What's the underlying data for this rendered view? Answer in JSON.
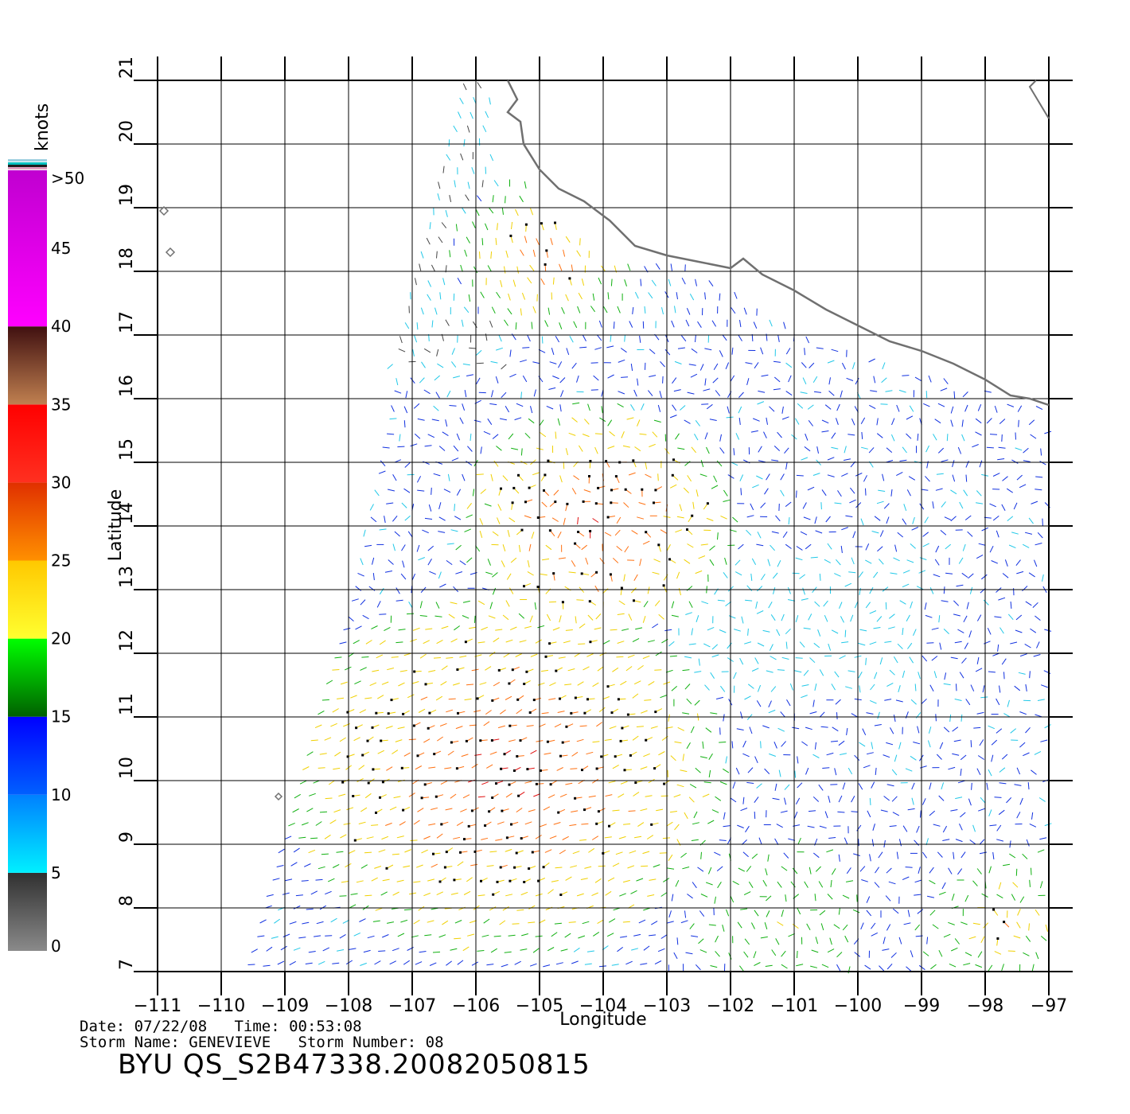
{
  "map": {
    "xlabel": "Longitude",
    "ylabel": "Latitude",
    "lon_range": [
      -111,
      -97
    ],
    "lat_range": [
      7,
      21
    ],
    "lon_ticks": [
      "−111",
      "−110",
      "−109",
      "−108",
      "−107",
      "−106",
      "−105",
      "−104",
      "−103",
      "−102",
      "−101",
      "−100",
      "−99",
      "−98",
      "−97"
    ],
    "lat_ticks": [
      "7",
      "8",
      "9",
      "10",
      "11",
      "12",
      "13",
      "14",
      "15",
      "16",
      "17",
      "18",
      "19",
      "20",
      "21"
    ],
    "grid": true,
    "content": "QuikSCAT wind vectors over the eastern Pacific off the Mexican coast"
  },
  "colorbar": {
    "units": "knots",
    "labels": [
      "0",
      "5",
      "10",
      "15",
      "20",
      "25",
      "30",
      "35",
      "40",
      "45",
      ">50"
    ],
    "bands": [
      {
        "from": 0,
        "to": 5,
        "top": "#303030",
        "bottom": "#8a8a8a"
      },
      {
        "from": 5,
        "to": 10,
        "top": "#0080ff",
        "bottom": "#00f0ff"
      },
      {
        "from": 10,
        "to": 15,
        "top": "#0000ff",
        "bottom": "#0060ff"
      },
      {
        "from": 15,
        "to": 20,
        "top": "#00ff00",
        "bottom": "#006000"
      },
      {
        "from": 20,
        "to": 25,
        "top": "#ffc800",
        "bottom": "#ffff30"
      },
      {
        "from": 25,
        "to": 30,
        "top": "#e03000",
        "bottom": "#ff9000"
      },
      {
        "from": 30,
        "to": 35,
        "top": "#ff0000",
        "bottom": "#ff3020"
      },
      {
        "from": 35,
        "to": 40,
        "top": "#401010",
        "bottom": "#c08050"
      },
      {
        "from": 40,
        "to": 50,
        "top": "#c000d0",
        "bottom": "#ff00ff"
      },
      {
        "from": 50,
        "to": 55,
        "top": "#3000b0",
        "bottom": "#7a00d0"
      }
    ]
  },
  "footer": {
    "line1": "Date: 07/22/08   Time: 00:53:08",
    "line2": "Storm Name: GENEVIEVE   Storm Number: 08",
    "title": "BYU QS_S2B47338.20082050815"
  }
}
